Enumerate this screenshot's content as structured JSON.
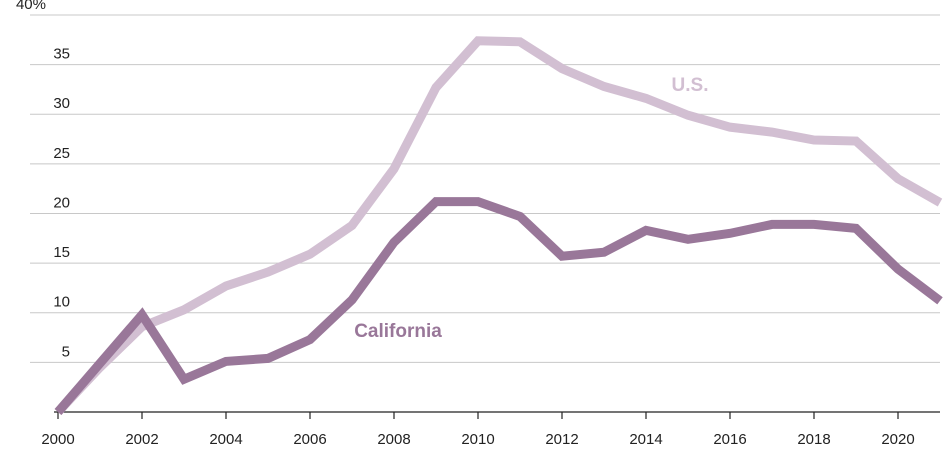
{
  "chart_data": {
    "type": "line",
    "x": [
      2000,
      2001,
      2002,
      2003,
      2004,
      2005,
      2006,
      2007,
      2008,
      2009,
      2010,
      2011,
      2012,
      2013,
      2014,
      2015,
      2016,
      2017,
      2018,
      2019,
      2020,
      2021
    ],
    "series": [
      {
        "name": "U.S.",
        "color": "#d2bfd2",
        "values": [
          0,
          4.5,
          8.6,
          10.3,
          12.7,
          14.1,
          15.9,
          18.8,
          24.5,
          32.7,
          37.4,
          37.3,
          34.6,
          32.8,
          31.6,
          29.9,
          28.7,
          28.2,
          27.4,
          27.3,
          23.5,
          21.1
        ]
      },
      {
        "name": "California",
        "color": "#997799",
        "values": [
          0,
          4.9,
          9.8,
          3.3,
          5.1,
          5.4,
          7.3,
          11.3,
          17.1,
          21.2,
          21.2,
          19.7,
          15.7,
          16.1,
          18.3,
          17.4,
          18.0,
          18.9,
          18.9,
          18.5,
          14.4,
          11.2
        ]
      }
    ],
    "xlim": [
      2000,
      2021
    ],
    "xticks": [
      2000,
      2002,
      2004,
      2006,
      2008,
      2010,
      2012,
      2014,
      2016,
      2018,
      2020
    ],
    "ylim": [
      0,
      40
    ],
    "yticks": [
      5,
      10,
      15,
      20,
      25,
      30,
      35,
      {
        "value": 40,
        "label": "40%"
      }
    ],
    "grid": true
  }
}
